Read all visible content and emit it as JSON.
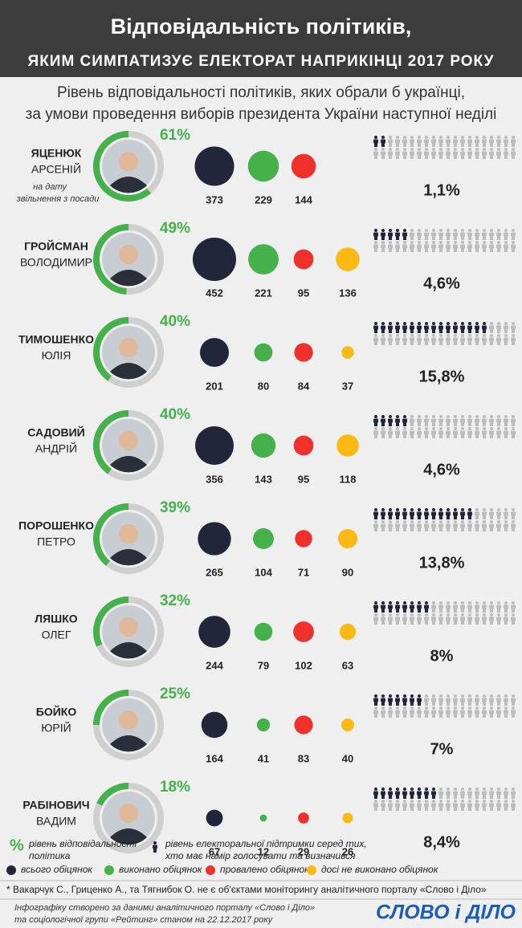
{
  "header": {
    "title": "Відповідальність політиків,",
    "subtitle": "яким симпатизує електорат наприкінці 2017 року"
  },
  "subheading": {
    "lines": [
      "Рівень відповідальності політиків,  яких обрали б українці,",
      "за умови проведення виборів президента України наступної неділі"
    ]
  },
  "politicians": [
    {
      "surname": "ЯЦЕНЮК",
      "name": "АРСЕНІЙ",
      "note": [
        "на дату",
        "звільнення з посади"
      ],
      "responsibility": 61,
      "responsibility_label": "61%",
      "promises": {
        "total": 373,
        "completed": 229,
        "failed": 144
      },
      "support": 1.1,
      "support_label": "1,1%"
    },
    {
      "surname": "ГРОЙСМАН",
      "name": "ВОЛОДИМИР",
      "responsibility": 49,
      "responsibility_label": "49%",
      "promises": {
        "total": 452,
        "completed": 221,
        "failed": 95,
        "pending": 136
      },
      "support": 4.6,
      "support_label": "4,6%"
    },
    {
      "surname": "ТИМОШЕНКО",
      "name": "ЮЛІЯ",
      "responsibility": 40,
      "responsibility_label": "40%",
      "promises": {
        "total": 201,
        "completed": 80,
        "failed": 84,
        "pending": 37
      },
      "support": 15.8,
      "support_label": "15,8%"
    },
    {
      "surname": "САДОВИЙ",
      "name": "АНДРІЙ",
      "responsibility": 40,
      "responsibility_label": "40%",
      "promises": {
        "total": 356,
        "completed": 143,
        "failed": 95,
        "pending": 118
      },
      "support": 4.6,
      "support_label": "4,6%"
    },
    {
      "surname": "ПОРОШЕНКО",
      "name": "ПЕТРО",
      "responsibility": 39,
      "responsibility_label": "39%",
      "promises": {
        "total": 265,
        "completed": 104,
        "failed": 71,
        "pending": 90
      },
      "support": 13.8,
      "support_label": "13,8%"
    },
    {
      "surname": "ЛЯШКО",
      "name": "ОЛЕГ",
      "responsibility": 32,
      "responsibility_label": "32%",
      "promises": {
        "total": 244,
        "completed": 79,
        "failed": 102,
        "pending": 63
      },
      "support": 8,
      "support_label": "8%"
    },
    {
      "surname": "БОЙКО",
      "name": "ЮРІЙ",
      "responsibility": 25,
      "responsibility_label": "25%",
      "promises": {
        "total": 164,
        "completed": 41,
        "failed": 83,
        "pending": 40
      },
      "support": 7,
      "support_label": "7%"
    },
    {
      "surname": "РАБІНОВИЧ",
      "name": "ВАДИМ",
      "responsibility": 18,
      "responsibility_label": "18%",
      "promises": {
        "total": 67,
        "completed": 12,
        "failed": 29,
        "pending": 26
      },
      "support": 8.4,
      "support_label": "8,4%"
    }
  ],
  "colors": {
    "total": "#23253a",
    "completed": "#45b14a",
    "failed": "#f0302a",
    "pending": "#fdb913"
  },
  "legend": {
    "responsibility": {
      "symbol": "%",
      "lines": [
        "рівень відповідальності",
        "політика"
      ]
    },
    "support": {
      "lines": [
        "рівень електоральної підтримки серед тих,",
        "хто має намір голосувати та визначився"
      ]
    },
    "total": "всього обіцянок",
    "completed": "виконано обіцянок",
    "failed": "провалено обіцянок",
    "pending": "досі не виконано обіцянок"
  },
  "footnote": "* Вакарчук С., Гриценко А., та Тягнибок О. не є об'єктами моніторингу аналітичного порталу «Слово і Діло»",
  "credits": [
    "Інфографіку створено за даними аналітичного порталу «Слово і Діло»",
    "та соціологічної групи «Рейтинг» станом на 22.12.2017 року"
  ],
  "logo": "СЛОВО і ДІЛО"
}
